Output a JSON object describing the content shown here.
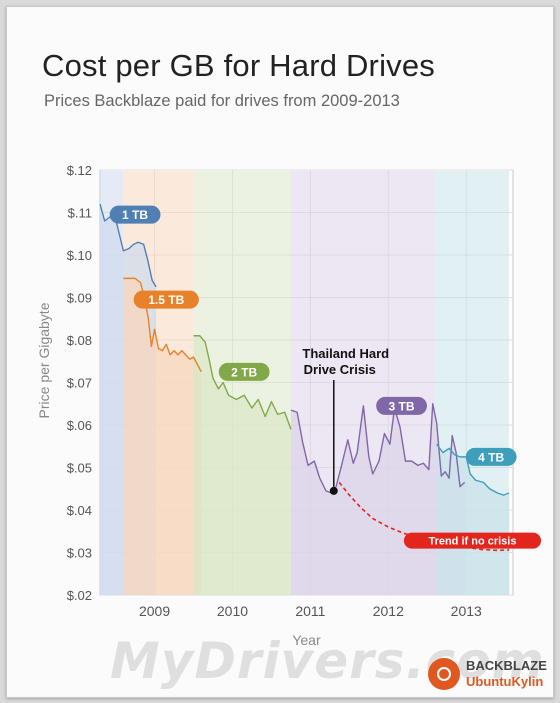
{
  "chart_data": {
    "type": "area",
    "title": "Cost per GB for Hard Drives",
    "subtitle": "Prices Backblaze paid for drives from 2009-2013",
    "xlabel": "Year",
    "ylabel": "Price per Gigabyte",
    "xlim": [
      2008.3,
      2013.6
    ],
    "ylim": [
      0.02,
      0.12
    ],
    "x_ticks": [
      {
        "x": 2009.0,
        "label": "2009"
      },
      {
        "x": 2010.0,
        "label": "2010"
      },
      {
        "x": 2011.0,
        "label": "2011"
      },
      {
        "x": 2012.0,
        "label": "2012"
      },
      {
        "x": 2013.0,
        "label": "2013"
      }
    ],
    "y_ticks": [
      {
        "y": 0.12,
        "label": "$.12"
      },
      {
        "y": 0.11,
        "label": "$.11"
      },
      {
        "y": 0.1,
        "label": "$.10"
      },
      {
        "y": 0.09,
        "label": "$.09"
      },
      {
        "y": 0.08,
        "label": "$.08"
      },
      {
        "y": 0.07,
        "label": "$.07"
      },
      {
        "y": 0.06,
        "label": "$.06"
      },
      {
        "y": 0.05,
        "label": "$.05"
      },
      {
        "y": 0.04,
        "label": "$.04"
      },
      {
        "y": 0.03,
        "label": "$.03"
      },
      {
        "y": 0.02,
        "label": "$.02"
      }
    ],
    "grid": true,
    "series": [
      {
        "name": "1 TB",
        "color": "#4f7fb3",
        "fill": "#cfdbec",
        "band": [
          2008.3,
          2008.6
        ],
        "points": [
          [
            2008.3,
            0.112
          ],
          [
            2008.36,
            0.108
          ],
          [
            2008.43,
            0.109
          ],
          [
            2008.5,
            0.1085
          ],
          [
            2008.56,
            0.104
          ],
          [
            2008.6,
            0.101
          ],
          [
            2008.67,
            0.1015
          ],
          [
            2008.73,
            0.1025
          ],
          [
            2008.79,
            0.103
          ],
          [
            2008.86,
            0.1025
          ],
          [
            2008.91,
            0.099
          ],
          [
            2008.97,
            0.094
          ],
          [
            2009.02,
            0.0925
          ]
        ]
      },
      {
        "name": "1.5 TB",
        "color": "#e8822a",
        "fill": "#f7d7bf",
        "band": [
          2008.6,
          2009.5
        ],
        "points": [
          [
            2008.6,
            0.0945
          ],
          [
            2008.75,
            0.0945
          ],
          [
            2008.82,
            0.0935
          ],
          [
            2008.87,
            0.09
          ],
          [
            2008.92,
            0.085
          ],
          [
            2008.96,
            0.0785
          ],
          [
            2009.0,
            0.0825
          ],
          [
            2009.05,
            0.078
          ],
          [
            2009.1,
            0.0775
          ],
          [
            2009.15,
            0.079
          ],
          [
            2009.2,
            0.0765
          ],
          [
            2009.25,
            0.0775
          ],
          [
            2009.3,
            0.0765
          ],
          [
            2009.35,
            0.0775
          ],
          [
            2009.4,
            0.0765
          ],
          [
            2009.45,
            0.0755
          ],
          [
            2009.5,
            0.076
          ],
          [
            2009.6,
            0.0725
          ]
        ]
      },
      {
        "name": "2 TB",
        "color": "#83a84a",
        "fill": "#dbe7c8",
        "band": [
          2009.5,
          2010.75
        ],
        "points": [
          [
            2009.5,
            0.081
          ],
          [
            2009.58,
            0.081
          ],
          [
            2009.65,
            0.0795
          ],
          [
            2009.7,
            0.0755
          ],
          [
            2009.75,
            0.071
          ],
          [
            2009.82,
            0.0685
          ],
          [
            2009.88,
            0.07
          ],
          [
            2009.95,
            0.067
          ],
          [
            2010.05,
            0.066
          ],
          [
            2010.15,
            0.067
          ],
          [
            2010.25,
            0.064
          ],
          [
            2010.33,
            0.066
          ],
          [
            2010.42,
            0.062
          ],
          [
            2010.5,
            0.0655
          ],
          [
            2010.58,
            0.0625
          ],
          [
            2010.67,
            0.063
          ],
          [
            2010.75,
            0.059
          ]
        ]
      },
      {
        "name": "3 TB",
        "color": "#8067a8",
        "fill": "#dcd3e8",
        "band": [
          2010.75,
          2012.6
        ],
        "points": [
          [
            2010.75,
            0.0635
          ],
          [
            2010.83,
            0.063
          ],
          [
            2010.9,
            0.056
          ],
          [
            2010.97,
            0.0505
          ],
          [
            2011.05,
            0.0515
          ],
          [
            2011.12,
            0.0475
          ],
          [
            2011.2,
            0.0445
          ],
          [
            2011.27,
            0.044
          ],
          [
            2011.33,
            0.0455
          ],
          [
            2011.4,
            0.0505
          ],
          [
            2011.48,
            0.0565
          ],
          [
            2011.55,
            0.051
          ],
          [
            2011.6,
            0.0535
          ],
          [
            2011.68,
            0.0645
          ],
          [
            2011.75,
            0.0525
          ],
          [
            2011.8,
            0.0485
          ],
          [
            2011.88,
            0.0515
          ],
          [
            2011.95,
            0.058
          ],
          [
            2012.02,
            0.0555
          ],
          [
            2012.08,
            0.064
          ],
          [
            2012.15,
            0.0595
          ],
          [
            2012.22,
            0.0515
          ],
          [
            2012.3,
            0.0515
          ],
          [
            2012.38,
            0.0505
          ],
          [
            2012.45,
            0.051
          ],
          [
            2012.52,
            0.0495
          ],
          [
            2012.57,
            0.065
          ],
          [
            2012.62,
            0.0605
          ],
          [
            2012.68,
            0.048
          ],
          [
            2012.73,
            0.049
          ],
          [
            2012.78,
            0.0475
          ],
          [
            2012.82,
            0.0575
          ],
          [
            2012.87,
            0.0535
          ],
          [
            2012.92,
            0.0455
          ],
          [
            2012.98,
            0.0465
          ]
        ]
      },
      {
        "name": "4 TB",
        "color": "#3d9fbc",
        "fill": "#c9e3ea",
        "band": [
          2012.6,
          2013.55
        ],
        "points": [
          [
            2012.62,
            0.0555
          ],
          [
            2012.7,
            0.0535
          ],
          [
            2012.78,
            0.0545
          ],
          [
            2012.85,
            0.053
          ],
          [
            2012.92,
            0.0525
          ],
          [
            2013.0,
            0.0525
          ],
          [
            2013.05,
            0.0485
          ],
          [
            2013.12,
            0.047
          ],
          [
            2013.22,
            0.0465
          ],
          [
            2013.3,
            0.045
          ],
          [
            2013.4,
            0.044
          ],
          [
            2013.48,
            0.0435
          ],
          [
            2013.55,
            0.044
          ]
        ]
      }
    ],
    "trend": {
      "name": "Trend if no crisis",
      "color": "#e2261e",
      "points": [
        [
          2011.37,
          0.0465
        ],
        [
          2011.5,
          0.0435
        ],
        [
          2011.65,
          0.0405
        ],
        [
          2011.8,
          0.038
        ],
        [
          2012.0,
          0.036
        ],
        [
          2012.2,
          0.0345
        ],
        [
          2012.4,
          0.0335
        ],
        [
          2012.6,
          0.0325
        ],
        [
          2012.8,
          0.0318
        ],
        [
          2013.0,
          0.0312
        ],
        [
          2013.2,
          0.0307
        ],
        [
          2013.4,
          0.0305
        ],
        [
          2013.55,
          0.0306
        ]
      ]
    },
    "annotation": {
      "line1": "Thailand Hard",
      "line2": "Drive Crisis",
      "x": 2011.3,
      "y": 0.0445
    },
    "labels": [
      {
        "series": "1 TB",
        "x": 2008.75,
        "y": 0.1095
      },
      {
        "series": "1.5 TB",
        "x": 2009.15,
        "y": 0.0895
      },
      {
        "series": "2 TB",
        "x": 2010.15,
        "y": 0.0725
      },
      {
        "series": "3 TB",
        "x": 2012.17,
        "y": 0.0645
      },
      {
        "series": "4 TB",
        "x": 2013.32,
        "y": 0.0525
      },
      {
        "series": "Trend if no crisis",
        "x": 2013.08,
        "y": 0.0328
      }
    ]
  },
  "watermark": "MyDrivers.com",
  "brand": {
    "line1": "BACKBLAZE",
    "line2": "UbuntuKylin"
  }
}
